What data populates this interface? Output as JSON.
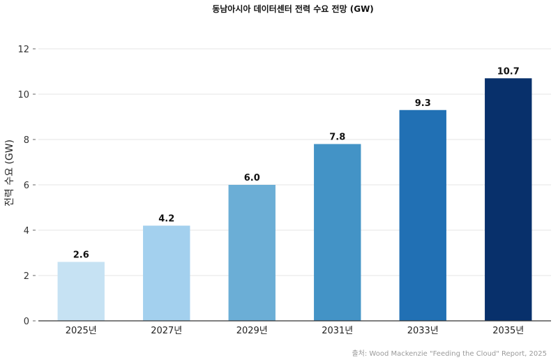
{
  "chart_data": {
    "type": "bar",
    "title": "동남아시아 데이터센터 전력 수요 전망 (GW)",
    "xlabel": "",
    "ylabel": "전력 수요 (GW)",
    "categories": [
      "2025년",
      "2027년",
      "2029년",
      "2031년",
      "2033년",
      "2035년"
    ],
    "values": [
      2.6,
      4.2,
      6.0,
      7.8,
      9.3,
      10.7
    ],
    "value_labels": [
      "2.6",
      "4.2",
      "6.0",
      "7.8",
      "9.3",
      "10.7"
    ],
    "bar_colors": [
      "#c6e2f3",
      "#a3d0ee",
      "#6baed6",
      "#4393c6",
      "#2170b4",
      "#08306b"
    ],
    "ylim": [
      0,
      12
    ],
    "yticks": [
      0,
      2,
      4,
      6,
      8,
      10,
      12
    ],
    "ytick_labels": [
      "0",
      "2",
      "4",
      "6",
      "8",
      "10",
      "12"
    ],
    "grid": true,
    "legend": "none",
    "source": "출처: Wood Mackenzie \"Feeding the Cloud\" Report, 2025"
  }
}
